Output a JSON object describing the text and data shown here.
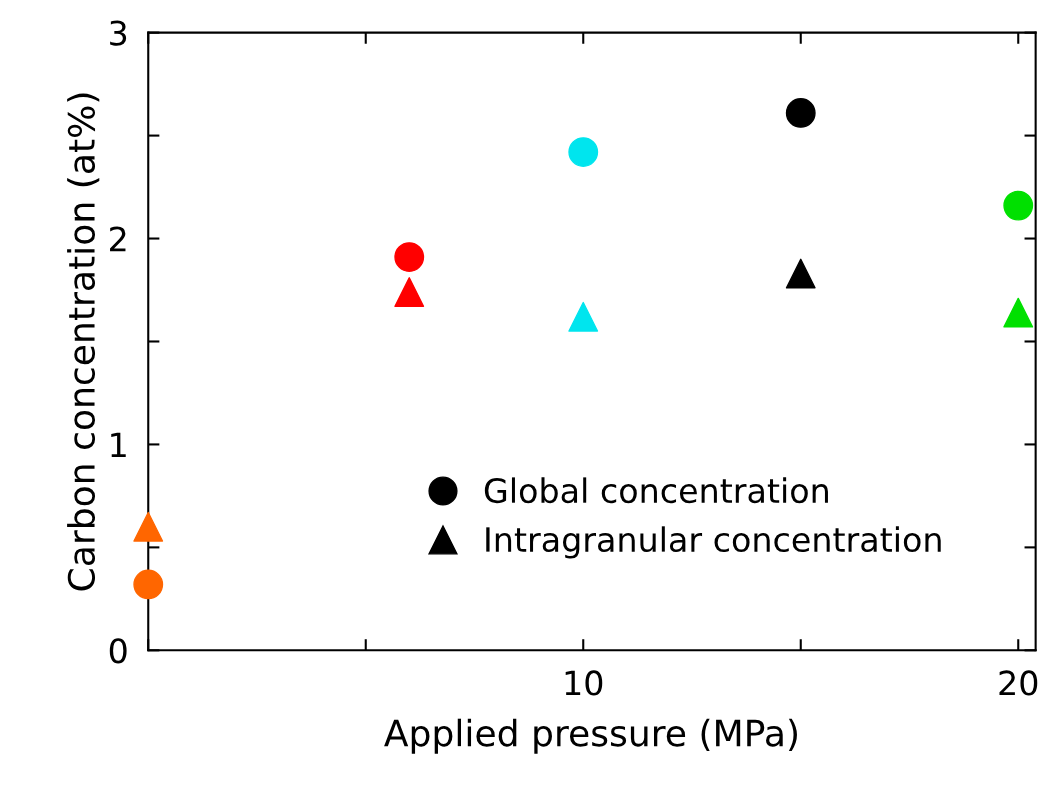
{
  "chart_data": {
    "type": "scatter",
    "xlabel": "Applied pressure (MPa)",
    "ylabel": "Carbon concentration (at%)",
    "x": [
      0,
      6,
      10,
      15,
      20
    ],
    "series": [
      {
        "name": "Global concentration",
        "marker": "circle",
        "color": "#000000",
        "colors": [
          "#ff6600",
          "#ff0000",
          "#00e5ee",
          "#000000",
          "#00e000"
        ],
        "values": [
          0.32,
          1.91,
          2.42,
          2.61,
          2.16
        ]
      },
      {
        "name": "Intragranular concentration",
        "marker": "triangle",
        "color": "#000000",
        "colors": [
          "#ff6600",
          "#ff0000",
          "#00e5ee",
          "#000000",
          "#00e000"
        ],
        "values": [
          0.6,
          1.74,
          1.62,
          1.83,
          1.64
        ]
      }
    ],
    "xlim": [
      0,
      20.4
    ],
    "ylim": [
      0,
      3
    ],
    "xticks": [
      {
        "value": 0,
        "label": null
      },
      {
        "value": 5,
        "label": null
      },
      10,
      {
        "value": 15,
        "label": null
      },
      20
    ],
    "yticks": [
      0,
      {
        "value": 0.5,
        "label": null
      },
      1,
      {
        "value": 1.5,
        "label": null
      },
      2,
      {
        "value": 2.5,
        "label": null
      },
      3
    ],
    "legend": "bottom right",
    "grid": false
  }
}
